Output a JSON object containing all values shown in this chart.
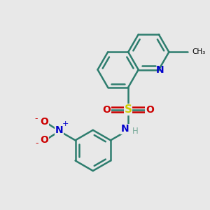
{
  "background_color": "#e8e8e8",
  "bond_color": "#2d7d6e",
  "bond_width": 1.8,
  "nitrogen_color": "#0000cc",
  "sulfur_color": "#cccc00",
  "oxygen_color": "#cc0000",
  "figsize": [
    3.0,
    3.0
  ],
  "dpi": 100,
  "xlim": [
    0.0,
    10.0
  ],
  "ylim": [
    0.0,
    10.0
  ]
}
